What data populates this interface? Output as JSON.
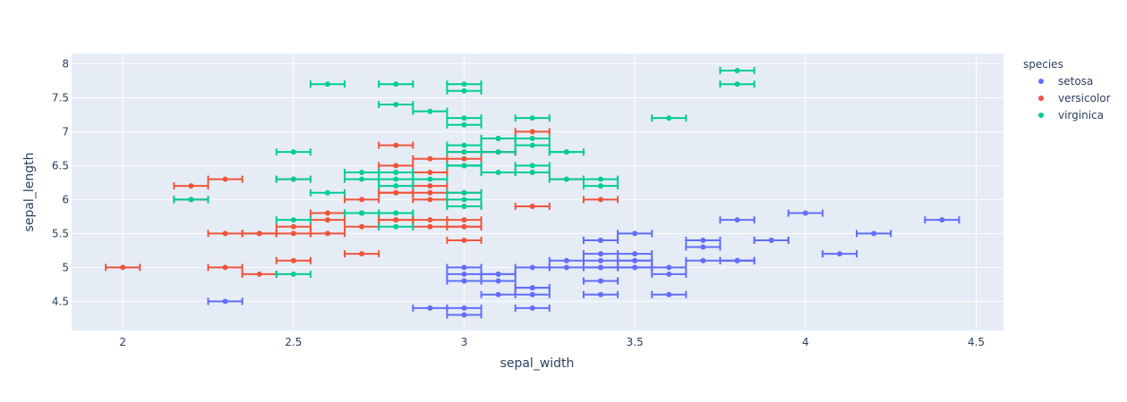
{
  "chart_data": {
    "type": "scatter",
    "xlabel": "sepal_width",
    "ylabel": "sepal_length",
    "xlim": [
      1.85,
      4.58
    ],
    "ylim": [
      4.07,
      8.15
    ],
    "x_ticks": [
      2,
      2.5,
      3,
      3.5,
      4,
      4.5
    ],
    "x_tick_labels": [
      "2",
      "2.5",
      "3",
      "3.5",
      "4",
      "4.5"
    ],
    "y_ticks": [
      4.5,
      5,
      5.5,
      6,
      6.5,
      7,
      7.5,
      8
    ],
    "y_tick_labels": [
      "4.5",
      "5",
      "5.5",
      "6",
      "6.5",
      "7",
      "7.5",
      "8"
    ],
    "grid": true,
    "error_x": 0.05,
    "legend": {
      "title": "species",
      "position": "top-right"
    },
    "series": [
      {
        "name": "setosa",
        "color": "#636efa",
        "x": [
          3.5,
          3.0,
          3.2,
          3.1,
          3.6,
          3.9,
          3.4,
          3.4,
          2.9,
          3.1,
          3.7,
          3.4,
          3.0,
          3.0,
          4.0,
          4.4,
          3.9,
          3.5,
          3.8,
          3.8,
          3.4,
          3.7,
          3.6,
          3.3,
          3.4,
          3.0,
          3.4,
          3.5,
          3.4,
          3.2,
          3.1,
          3.4,
          4.1,
          4.2,
          3.1,
          3.2,
          3.5,
          3.6,
          3.0,
          3.4,
          3.5,
          2.3,
          3.2,
          3.5,
          3.8,
          3.0,
          3.8,
          3.2,
          3.7,
          3.3
        ],
        "y": [
          5.1,
          4.9,
          4.7,
          4.6,
          5.0,
          5.4,
          4.6,
          5.0,
          4.4,
          4.9,
          5.4,
          4.8,
          4.8,
          4.3,
          5.8,
          5.7,
          5.4,
          5.1,
          5.7,
          5.1,
          5.4,
          5.1,
          4.6,
          5.1,
          4.8,
          5.0,
          5.0,
          5.2,
          5.2,
          4.7,
          4.8,
          5.4,
          5.2,
          5.5,
          4.9,
          5.0,
          5.5,
          4.9,
          4.4,
          5.1,
          5.0,
          4.5,
          4.4,
          5.0,
          5.1,
          4.8,
          5.1,
          4.6,
          5.3,
          5.0
        ]
      },
      {
        "name": "versicolor",
        "color": "#ef553b",
        "x": [
          3.2,
          3.2,
          3.1,
          2.3,
          2.8,
          2.8,
          3.3,
          2.4,
          2.9,
          2.7,
          2.0,
          3.0,
          2.2,
          2.9,
          2.9,
          3.1,
          3.0,
          2.7,
          2.2,
          2.5,
          3.2,
          2.8,
          2.5,
          2.8,
          2.9,
          3.0,
          2.8,
          3.0,
          2.9,
          2.6,
          2.4,
          2.4,
          2.7,
          2.7,
          3.0,
          3.4,
          3.1,
          2.3,
          3.0,
          2.5,
          2.6,
          3.0,
          2.6,
          2.3,
          2.7,
          3.0,
          2.9,
          2.9,
          2.5,
          2.8
        ],
        "y": [
          7.0,
          6.4,
          6.9,
          5.5,
          6.5,
          5.7,
          6.3,
          4.9,
          6.6,
          5.2,
          5.0,
          5.9,
          6.0,
          6.1,
          5.6,
          6.7,
          5.6,
          5.8,
          6.2,
          5.6,
          5.9,
          6.1,
          6.3,
          6.1,
          6.4,
          6.6,
          6.8,
          6.7,
          6.0,
          5.7,
          5.5,
          5.5,
          5.8,
          6.0,
          5.4,
          6.0,
          6.7,
          6.3,
          5.6,
          5.5,
          5.5,
          6.1,
          5.8,
          5.0,
          5.6,
          5.7,
          5.7,
          6.2,
          5.1,
          5.7
        ]
      },
      {
        "name": "virginica",
        "color": "#00cc96",
        "x": [
          3.3,
          2.7,
          3.0,
          2.9,
          3.0,
          3.0,
          2.5,
          2.9,
          2.5,
          3.6,
          3.2,
          2.7,
          3.0,
          2.5,
          2.8,
          3.2,
          3.0,
          3.8,
          2.6,
          2.2,
          3.2,
          2.8,
          2.8,
          2.7,
          3.3,
          3.2,
          2.8,
          3.0,
          2.8,
          3.0,
          2.8,
          3.8,
          2.8,
          2.8,
          2.6,
          3.0,
          3.4,
          3.1,
          3.0,
          3.1,
          3.1,
          3.1,
          2.7,
          3.2,
          3.3,
          3.0,
          2.5,
          3.0,
          3.4,
          3.0
        ],
        "y": [
          6.3,
          5.8,
          7.1,
          6.3,
          6.5,
          7.6,
          4.9,
          7.3,
          6.7,
          7.2,
          6.5,
          6.4,
          6.8,
          5.7,
          5.8,
          6.4,
          6.5,
          7.7,
          7.7,
          6.0,
          6.9,
          5.6,
          7.7,
          6.3,
          6.7,
          7.2,
          6.2,
          6.1,
          6.4,
          7.2,
          7.4,
          7.9,
          6.4,
          6.3,
          6.1,
          7.7,
          6.3,
          6.4,
          6.0,
          6.9,
          6.7,
          6.9,
          5.8,
          6.8,
          6.7,
          6.7,
          6.3,
          6.5,
          6.2,
          5.9
        ]
      }
    ]
  }
}
